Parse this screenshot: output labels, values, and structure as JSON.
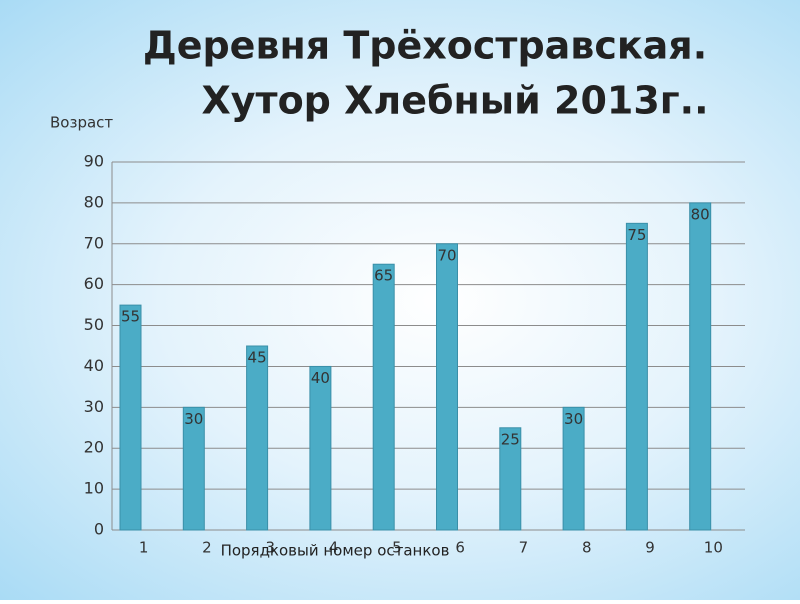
{
  "chart_data": {
    "type": "bar",
    "title_lines": [
      "Деревня Трёхостравская.",
      "Хутор Хлебный 2013г.."
    ],
    "y_label": "Возраст",
    "x_label": "Порядковый номер останков",
    "categories": [
      "1",
      "2",
      "3",
      "4",
      "5",
      "6",
      "7",
      "8",
      "9",
      "10"
    ],
    "values": [
      55,
      30,
      45,
      40,
      65,
      70,
      25,
      30,
      75,
      80
    ],
    "color": "#4bacc6",
    "ylim": [
      0,
      90
    ],
    "yticks": [
      0,
      10,
      20,
      30,
      40,
      50,
      60,
      70,
      80,
      90
    ],
    "grid": true
  }
}
